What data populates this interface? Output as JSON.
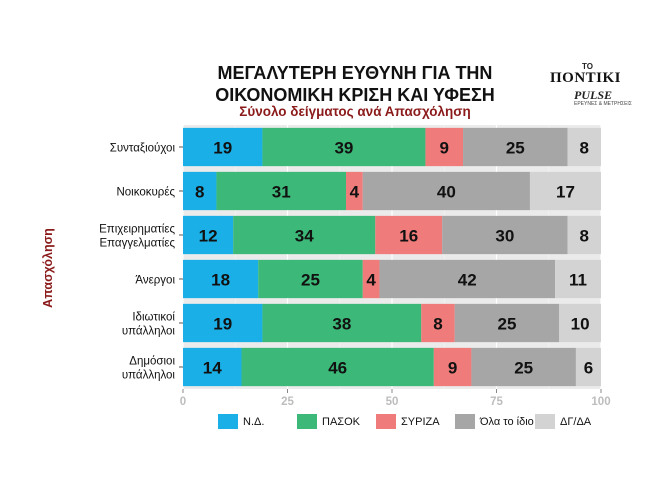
{
  "title_line1": "ΜΕΓΑΛΥΤΕΡΗ ΕΥΘΥΝΗ ΓΙΑ ΤΗΝ",
  "title_line2": "ΟΙΚΟΝΟΜΙΚΗ ΚΡΙΣΗ ΚΑΙ ΥΦΕΣΗ",
  "subtitle": "Σύνολο δείγματος ανά Απασχόληση",
  "logo": {
    "top": "ΤΟ",
    "main": "ΠΟΝΤΙΚΙ",
    "sub": "PULSE",
    "tag": "ΕΡΕΥΝΕΣ & ΜΕΤΡΗΣΕΙΣ"
  },
  "chart_data": {
    "type": "bar",
    "orientation": "horizontal",
    "stacked": true,
    "ylabel": "Απασχόληση",
    "xlim": [
      0,
      100
    ],
    "xticks": [
      "0",
      "25",
      "50",
      "75",
      "100"
    ],
    "grid": true,
    "legend_position": "bottom",
    "categories": [
      [
        "Συνταξιούχοι"
      ],
      [
        "Νοικοκυρές"
      ],
      [
        "Επιχειρηματίες",
        "Επαγγελματίες"
      ],
      [
        "Άνεργοι"
      ],
      [
        "Ιδιωτικοί",
        "υπάλληλοι"
      ],
      [
        "Δημόσιοι",
        "υπάλληλοι"
      ]
    ],
    "series": [
      {
        "name": "Ν.Δ.",
        "color": "#1aafe6",
        "values": [
          19,
          8,
          12,
          18,
          19,
          14
        ]
      },
      {
        "name": "ΠΑΣΟΚ",
        "color": "#3cb878",
        "values": [
          39,
          31,
          34,
          25,
          38,
          46
        ]
      },
      {
        "name": "ΣΥΡΙΖΑ",
        "color": "#f07b7b",
        "values": [
          9,
          4,
          16,
          4,
          8,
          9
        ]
      },
      {
        "name": "Όλα το ίδιο",
        "color": "#a6a6a6",
        "values": [
          25,
          40,
          30,
          42,
          25,
          25
        ]
      },
      {
        "name": "ΔΓ/ΔΑ",
        "color": "#d3d3d3",
        "values": [
          8,
          17,
          8,
          11,
          10,
          6
        ]
      }
    ]
  }
}
